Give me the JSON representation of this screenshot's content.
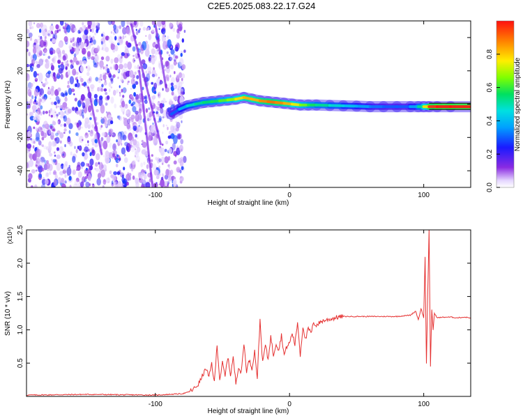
{
  "title": "C2E5.2025.083.22.17.G24",
  "colors": {
    "snr_line": "#e53030",
    "ridge_strong": "#ff1a1a",
    "ridge_mid": "#33dd55",
    "ridge_low": "#00bbdd",
    "ridge_edge": "#2a2add",
    "noise": "#7b22e6"
  },
  "chart_data": [
    {
      "type": "heatmap",
      "title": "C2E5.2025.083.22.17.G24",
      "xlabel": "Height of straight line (km)",
      "ylabel": "Frequency (Hz)",
      "x_ticks": [
        "-100",
        "0",
        "100"
      ],
      "y_ticks": [
        "-40",
        "-20",
        "0",
        "20",
        "40"
      ],
      "xlim": [
        -196,
        135
      ],
      "ylim": [
        -50,
        50
      ],
      "grid": false,
      "colorbar": {
        "label": "Normalized spectral amplitude",
        "ticks": [
          "0.0",
          "0.2",
          "0.4",
          "0.6",
          "0.8"
        ],
        "range": [
          0,
          1
        ],
        "colormap": "rainbow (violet to red)"
      },
      "noise_region": {
        "x_range": [
          -196,
          -78
        ],
        "max_amplitude": 0.3
      },
      "ridge": {
        "x": [
          -88,
          -82,
          -76,
          -70,
          -64,
          -58,
          -52,
          -46,
          -40,
          -34,
          -28,
          -22,
          -16,
          -10,
          -4,
          2,
          8,
          14,
          20,
          30,
          40,
          50,
          60,
          70,
          80,
          90,
          96,
          100,
          104,
          110,
          120,
          135
        ],
        "y": [
          -6,
          -3,
          -1,
          0,
          1,
          1.5,
          2,
          2.5,
          3,
          4,
          3,
          2,
          1.5,
          1,
          0.5,
          0,
          -0.5,
          -0.5,
          -0.5,
          -0.8,
          -1,
          -1.2,
          -1.5,
          -1.5,
          -1.5,
          -1.5,
          -1.5,
          -1.5,
          -1.5,
          -1.5,
          -1.5,
          -1.5
        ],
        "amplitude": [
          0.25,
          0.35,
          0.45,
          0.5,
          0.55,
          0.55,
          0.6,
          0.65,
          0.7,
          0.85,
          0.8,
          0.85,
          0.9,
          0.9,
          0.85,
          0.8,
          0.7,
          0.6,
          0.55,
          0.5,
          0.45,
          0.4,
          0.35,
          0.3,
          0.3,
          0.3,
          0.45,
          0.6,
          0.95,
          1.0,
          1.0,
          1.0
        ]
      }
    },
    {
      "type": "line",
      "xlabel": "Height of straight line (km)",
      "ylabel": "SNR (10 * v/v)",
      "y_multiplier": "(x10⁴)",
      "x_ticks": [
        "-100",
        "0",
        "100"
      ],
      "y_ticks": [
        "0.5",
        "1.0",
        "1.5",
        "2.0",
        "2.5"
      ],
      "xlim": [
        -196,
        135
      ],
      "ylim": [
        0,
        2.5
      ],
      "grid": false,
      "series": [
        {
          "x": [
            -196,
            -150,
            -100,
            -80,
            -76,
            -72,
            -68,
            -66,
            -64,
            -62,
            -60,
            -58,
            -56,
            -54,
            -52,
            -50,
            -48,
            -46,
            -44,
            -42,
            -40,
            -38,
            -36,
            -34,
            -32,
            -30,
            -28,
            -26,
            -24,
            -22,
            -20,
            -18,
            -16,
            -14,
            -12,
            -10,
            -8,
            -6,
            -4,
            -2,
            0,
            2,
            4,
            6,
            8,
            10,
            12,
            14,
            16,
            18,
            20,
            24,
            28,
            32,
            36,
            40,
            50,
            60,
            70,
            80,
            90,
            94,
            96,
            98,
            100,
            101,
            102,
            103,
            104,
            105,
            106,
            107,
            108,
            110,
            115,
            120,
            125,
            130,
            135
          ],
          "y": [
            0.02,
            0.03,
            0.02,
            0.04,
            0.06,
            0.1,
            0.18,
            0.26,
            0.35,
            0.42,
            0.28,
            0.5,
            0.2,
            0.78,
            0.25,
            0.5,
            0.3,
            0.6,
            0.32,
            0.58,
            0.2,
            0.45,
            0.34,
            0.8,
            0.38,
            0.55,
            0.42,
            0.68,
            0.28,
            1.15,
            0.5,
            0.78,
            0.55,
            0.9,
            0.62,
            0.8,
            0.7,
            0.92,
            0.62,
            0.75,
            0.8,
            0.95,
            0.78,
            1.12,
            0.62,
            1.05,
            0.85,
            1.02,
            0.95,
            1.1,
            1.07,
            1.13,
            1.15,
            1.17,
            1.19,
            1.2,
            1.2,
            1.2,
            1.2,
            1.2,
            1.22,
            1.28,
            1.15,
            1.32,
            1.18,
            2.1,
            0.5,
            1.55,
            2.5,
            0.45,
            1.3,
            1.0,
            1.25,
            1.18,
            1.19,
            1.19,
            1.18,
            1.19,
            1.18
          ]
        }
      ]
    }
  ]
}
